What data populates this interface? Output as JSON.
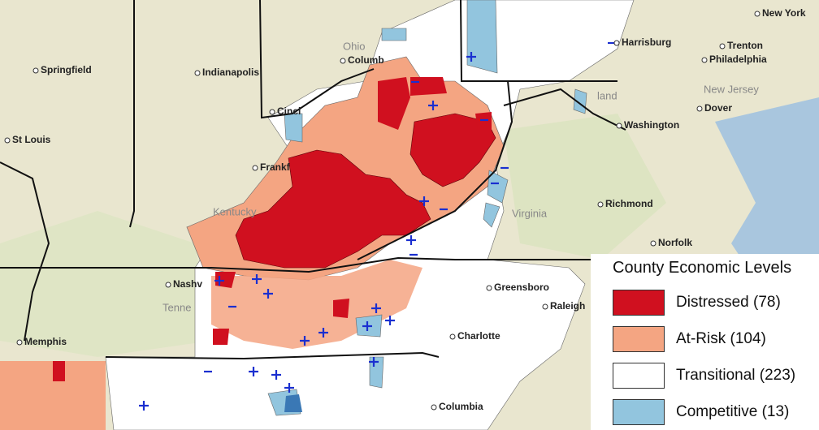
{
  "legend": {
    "title": "County Economic Levels",
    "items": [
      {
        "label": "Distressed (78)",
        "color": "#d0101f"
      },
      {
        "label": "At-Risk (104)",
        "color": "#f4a582"
      },
      {
        "label": "Transitional (223)",
        "color": "#ffffff"
      },
      {
        "label": "Competitive (13)",
        "color": "#92c5de"
      }
    ]
  },
  "places": [
    "New York",
    "Harrisburg",
    "Trenton",
    "Philadelphia",
    "New Jersey",
    "Dover",
    "Washington",
    "Richmond",
    "Norfolk",
    "Virginia",
    "Greensboro",
    "Raleigh",
    "Charlotte",
    "Columbia",
    "Memphis",
    "Nashv",
    "Tenne",
    "Kentucky",
    "Frankf",
    "Cinci",
    "Columb",
    "Ohio",
    "Indianapolis",
    "Springfield",
    "St Louis",
    "land"
  ]
}
